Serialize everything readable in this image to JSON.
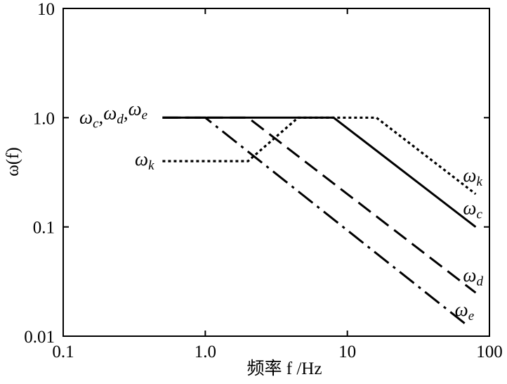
{
  "chart_data": {
    "type": "line",
    "title": "",
    "xlabel": "频率 f /Hz",
    "ylabel": "ω(f)",
    "xscale": "log",
    "yscale": "log",
    "xlim": [
      0.1,
      100
    ],
    "ylim": [
      0.01,
      10
    ],
    "grid": false,
    "legend": "inline labels at line ends",
    "x_tick_labels": [
      "0.1",
      "1.0",
      "10",
      "100"
    ],
    "y_tick_labels": [
      "0.01",
      "0.1",
      "1.0",
      "10"
    ],
    "x_ticks": [
      0.1,
      1,
      10,
      100
    ],
    "y_ticks": [
      0.01,
      0.1,
      1,
      10
    ],
    "shared_label": "ωc,ωd,ωe",
    "series": [
      {
        "key": "wc",
        "label": "ωc",
        "dash": "solid",
        "x": [
          0.5,
          8,
          80
        ],
        "y": [
          1.0,
          1.0,
          0.1
        ]
      },
      {
        "key": "wd",
        "label": "ωd",
        "dash": "dash",
        "x": [
          0.5,
          2,
          80
        ],
        "y": [
          1.0,
          1.0,
          0.025
        ]
      },
      {
        "key": "we",
        "label": "ωe",
        "dash": "dashdot",
        "x": [
          0.5,
          1,
          70
        ],
        "y": [
          1.0,
          1.0,
          0.0125
        ]
      },
      {
        "key": "wk",
        "label": "ωk",
        "dash": "dot",
        "x": [
          0.5,
          2,
          4.5,
          16,
          80
        ],
        "y": [
          0.4,
          0.4,
          1.0,
          1.0,
          0.2
        ]
      }
    ]
  }
}
